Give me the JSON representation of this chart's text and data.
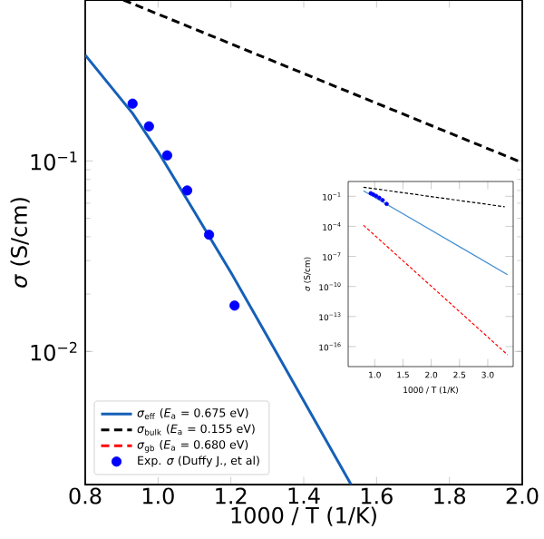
{
  "chart_data": [
    {
      "type": "line",
      "xlabel": "1000 / T (1/K)",
      "ylabel": "*σ* (S/cm)",
      "log": "y",
      "legend": "bottom left",
      "xlim": [
        0.8,
        2.0
      ],
      "ylim": [
        0.002,
        0.7
      ],
      "xticks": [
        {
          "value": 0.8,
          "label": "0.8"
        },
        {
          "value": 1.0,
          "label": "1.0"
        },
        {
          "value": 1.2,
          "label": "1.2"
        },
        {
          "value": 1.4,
          "label": "1.4"
        },
        {
          "value": 1.6,
          "label": "1.6"
        },
        {
          "value": 1.8,
          "label": "1.8"
        },
        {
          "value": 2.0,
          "label": "2.0"
        }
      ],
      "yticks": [
        {
          "value": 0.01,
          "label": "10$^{−2}$"
        },
        {
          "value": 0.1,
          "label": "10$^{−1}$"
        }
      ],
      "series": [
        {
          "name": "*σ*$_{eff}$ (*E*$_{a}$ = 0.675 eV)",
          "line_style": "solid",
          "color": "#1560b8",
          "x": [
            0.8,
            0.93,
            1.0,
            1.1,
            1.2,
            1.3,
            1.4,
            1.53
          ],
          "values": [
            0.36,
            0.178,
            0.112,
            0.054,
            0.026,
            0.012,
            0.0055,
            0.002
          ]
        },
        {
          "name": "*σ*$_{bulk}$ (*E*$_{a}$ = 0.155 eV)",
          "line_style": "dashed",
          "color": "#000000",
          "x": [
            0.905,
            2.0
          ],
          "values": [
            0.7,
            0.098
          ]
        },
        {
          "name": "*σ*$_{gb}$ (*E*$_{a}$ = 0.680 eV)",
          "line_style": "dashed",
          "color": "#ff0000"
        },
        {
          "name": "Exp. *σ* (Duffy J., et al)",
          "type": "scatter",
          "color": "#0000ff",
          "x": [
            0.93,
            0.975,
            1.025,
            1.08,
            1.14,
            1.21
          ],
          "values": [
            0.2,
            0.152,
            0.107,
            0.07,
            0.041,
            0.0174
          ]
        }
      ]
    },
    {
      "type": "line",
      "xlabel": "1000 / T (1/K)",
      "ylabel": "*σ* (S/cm)",
      "log": "y",
      "xlim": [
        0.53,
        3.45
      ],
      "ylim": [
        1e-18,
        3
      ],
      "xticks": [
        {
          "value": 1.0,
          "label": "1.0"
        },
        {
          "value": 1.5,
          "label": "1.5"
        },
        {
          "value": 2.0,
          "label": "2.0"
        },
        {
          "value": 2.5,
          "label": "2.5"
        },
        {
          "value": 3.0,
          "label": "3.0"
        }
      ],
      "yticks": [
        {
          "value": 1e-16,
          "label": "10$^{−16}$"
        },
        {
          "value": 1e-13,
          "label": "10$^{−13}$"
        },
        {
          "value": 1e-10,
          "label": "10$^{−10}$"
        },
        {
          "value": 1e-07,
          "label": "10$^{−7}$"
        },
        {
          "value": 0.0001,
          "label": "10$^{−4}$"
        },
        {
          "value": 0.1,
          "label": "10$^{−1}$"
        }
      ],
      "series": [
        {
          "line_style": "solid",
          "color": "#3d8bd0",
          "x": [
            0.8,
            3.35
          ],
          "values": [
            0.36,
            1.5e-09
          ]
        },
        {
          "line_style": "dashed",
          "color": "#000000",
          "x": [
            0.8,
            3.3
          ],
          "values": [
            0.8,
            0.009
          ]
        },
        {
          "line_style": "dashed",
          "color": "#ff0000",
          "x": [
            0.8,
            3.35
          ],
          "values": [
            0.00013,
            1.5e-17
          ]
        },
        {
          "type": "scatter",
          "color": "#0000ff",
          "x": [
            0.93,
            0.975,
            1.025,
            1.08,
            1.14,
            1.21
          ],
          "values": [
            0.2,
            0.152,
            0.107,
            0.07,
            0.041,
            0.0174
          ]
        }
      ]
    }
  ]
}
